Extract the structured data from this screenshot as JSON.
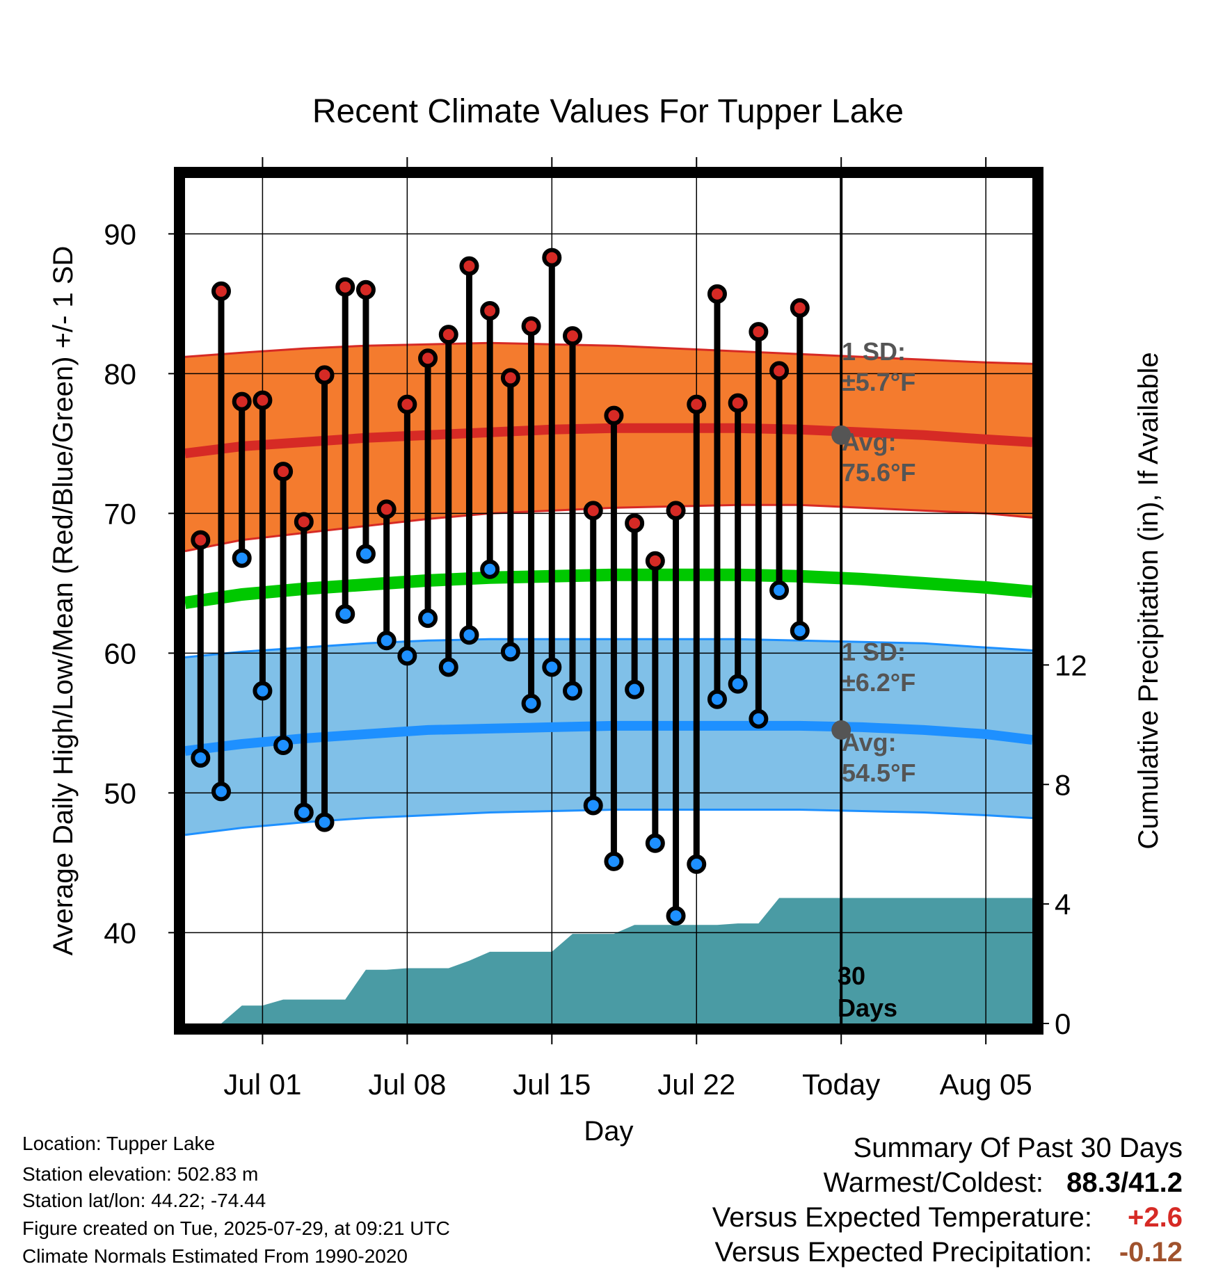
{
  "chart_data": {
    "type": "line",
    "title": "Recent Climate Values For Tupper Lake",
    "xlabel": "Day",
    "ylabel_left": "Average Daily High/Low/Mean (Red/Blue/Green) +/- 1 SD",
    "ylabel_right": "Cumulative Precipitation (in), If Available",
    "x_tick_labels": [
      {
        "day": 1,
        "label": "Jul 01"
      },
      {
        "day": 8,
        "label": "Jul 08"
      },
      {
        "day": 15,
        "label": "Jul 15"
      },
      {
        "day": 22,
        "label": "Jul 22"
      },
      {
        "day": 29,
        "label": "Today"
      },
      {
        "day": 36,
        "label": "Aug 05"
      }
    ],
    "ylim_left": [
      33.5,
      94
    ],
    "yticks_left": [
      40,
      50,
      60,
      70,
      80,
      90
    ],
    "ylim_right": [
      0,
      28.3
    ],
    "yticks_right": [
      0,
      4,
      8,
      12
    ],
    "xlim": [
      -2.75,
      38.25
    ],
    "days": [
      -2,
      -1,
      0,
      1,
      2,
      3,
      4,
      5,
      6,
      7,
      8,
      9,
      10,
      11,
      12,
      13,
      14,
      15,
      16,
      17,
      18,
      19,
      20,
      21,
      22,
      23,
      24,
      25,
      26,
      27,
      28
    ],
    "highs": [
      68.1,
      85.9,
      78.0,
      78.1,
      73.0,
      69.4,
      79.9,
      86.2,
      86.0,
      70.3,
      77.8,
      81.1,
      82.8,
      87.7,
      84.5,
      79.7,
      83.4,
      88.3,
      82.7,
      70.2,
      77.0,
      69.3,
      66.6,
      70.2,
      77.8,
      85.7,
      77.9,
      83.0,
      80.2,
      84.7
    ],
    "lows": [
      52.5,
      50.1,
      66.8,
      57.3,
      53.4,
      48.6,
      47.9,
      62.8,
      67.1,
      60.9,
      59.8,
      62.5,
      59.0,
      61.3,
      66.0,
      60.1,
      56.4,
      59.0,
      57.3,
      49.1,
      45.1,
      57.4,
      46.4,
      41.2,
      44.9,
      56.7,
      57.8,
      55.3,
      64.5,
      61.6
    ],
    "observed_days": [
      -2,
      -1,
      0,
      1,
      2,
      3,
      4,
      5,
      6,
      7,
      8,
      9,
      10,
      11,
      12,
      13,
      14,
      15,
      16,
      17,
      18,
      19,
      20,
      21,
      22,
      23,
      24,
      25,
      26,
      27
    ],
    "normal_high": [
      74.3,
      74.8,
      75.1,
      75.4,
      75.6,
      75.8,
      76.0,
      76.1,
      76.1,
      76.1,
      76.0,
      75.8,
      75.6,
      75.3,
      75.1
    ],
    "normal_high_sd_upper": [
      81.2,
      81.5,
      81.8,
      82.0,
      82.1,
      82.2,
      82.1,
      82.0,
      81.8,
      81.6,
      81.4,
      81.2,
      81.0,
      80.8,
      80.7
    ],
    "normal_high_sd_lower": [
      67.3,
      68.1,
      68.6,
      69.1,
      69.6,
      70.0,
      70.2,
      70.4,
      70.5,
      70.6,
      70.6,
      70.4,
      70.2,
      70.0,
      69.7
    ],
    "normal_mean": [
      63.6,
      64.2,
      64.6,
      64.9,
      65.2,
      65.4,
      65.5,
      65.6,
      65.6,
      65.6,
      65.5,
      65.3,
      65.0,
      64.7,
      64.4
    ],
    "normal_low": [
      53.0,
      53.5,
      53.9,
      54.2,
      54.5,
      54.6,
      54.7,
      54.8,
      54.8,
      54.8,
      54.8,
      54.7,
      54.5,
      54.2,
      53.8
    ],
    "normal_low_sd_upper": [
      59.7,
      60.1,
      60.4,
      60.7,
      60.9,
      61.0,
      61.0,
      61.0,
      61.0,
      61.0,
      60.9,
      60.8,
      60.7,
      60.4,
      60.2
    ],
    "normal_low_sd_lower": [
      47.0,
      47.5,
      47.9,
      48.2,
      48.4,
      48.6,
      48.7,
      48.8,
      48.8,
      48.8,
      48.8,
      48.7,
      48.6,
      48.4,
      48.2
    ],
    "normal_days": [
      -2.75,
      0,
      3,
      6,
      9,
      12,
      15,
      18,
      21,
      24,
      27,
      30,
      33,
      36,
      38.25
    ],
    "precip_cumulative": [
      [
        -2.75,
        0
      ],
      [
        -1,
        0
      ],
      [
        0,
        0.6
      ],
      [
        1,
        0.6
      ],
      [
        2,
        0.8
      ],
      [
        3,
        0.8
      ],
      [
        4,
        0.8
      ],
      [
        5,
        0.8
      ],
      [
        6,
        1.8
      ],
      [
        7,
        1.8
      ],
      [
        8,
        1.85
      ],
      [
        9,
        1.85
      ],
      [
        10,
        1.85
      ],
      [
        11,
        2.1
      ],
      [
        12,
        2.4
      ],
      [
        13,
        2.4
      ],
      [
        14,
        2.4
      ],
      [
        15,
        2.4
      ],
      [
        16,
        3.0
      ],
      [
        17,
        3.0
      ],
      [
        18,
        3.0
      ],
      [
        19,
        3.3
      ],
      [
        20,
        3.3
      ],
      [
        21,
        3.3
      ],
      [
        22,
        3.3
      ],
      [
        23,
        3.3
      ],
      [
        24,
        3.35
      ],
      [
        25,
        3.35
      ],
      [
        26,
        4.2
      ],
      [
        27,
        4.2
      ],
      [
        28,
        4.2
      ],
      [
        29,
        4.2
      ],
      [
        38.25,
        4.2
      ]
    ],
    "today_day": 29,
    "high_annotation": {
      "sd_label": "1 SD:",
      "sd_value": "±5.7°F",
      "avg_label": "Avg:",
      "avg_value": "75.6°F",
      "avg": 75.6
    },
    "low_annotation": {
      "sd_label": "1 SD:",
      "sd_value": "±6.2°F",
      "avg_label": "Avg:",
      "avg_value": "54.5°F",
      "avg": 54.5
    },
    "period_label": [
      "30",
      "Days"
    ],
    "colors": {
      "high_band": "#f47b2e",
      "high_line": "#d62a25",
      "high_edge": "#d62a25",
      "low_band": "#80c0e8",
      "low_line": "#1e90ff",
      "low_edge": "#1e90ff",
      "mean_line": "#00c800",
      "precip": "#4a9ba4",
      "high_marker": "#d62a25",
      "low_marker": "#1e90ff",
      "avg_dot": "#555555"
    }
  },
  "info": {
    "location": "Location: Tupper Lake",
    "elevation": "Station elevation: 502.83 m",
    "latlon": "Station lat/lon: 44.22; -74.44",
    "created": "Figure created on Tue, 2025-07-29, at 09:21 UTC",
    "normals": "Climate Normals Estimated From 1990-2020"
  },
  "summary": {
    "title": "Summary Of Past 30 Days",
    "warm_cold_label": "Warmest/Coldest:",
    "warm_cold_value": "88.3/41.2",
    "temp_label": "Versus Expected Temperature:",
    "temp_value": "+2.6",
    "temp_color": "#d62a25",
    "precip_label": "Versus Expected Precipitation:",
    "precip_value": "-0.12",
    "precip_color": "#a0522d"
  }
}
